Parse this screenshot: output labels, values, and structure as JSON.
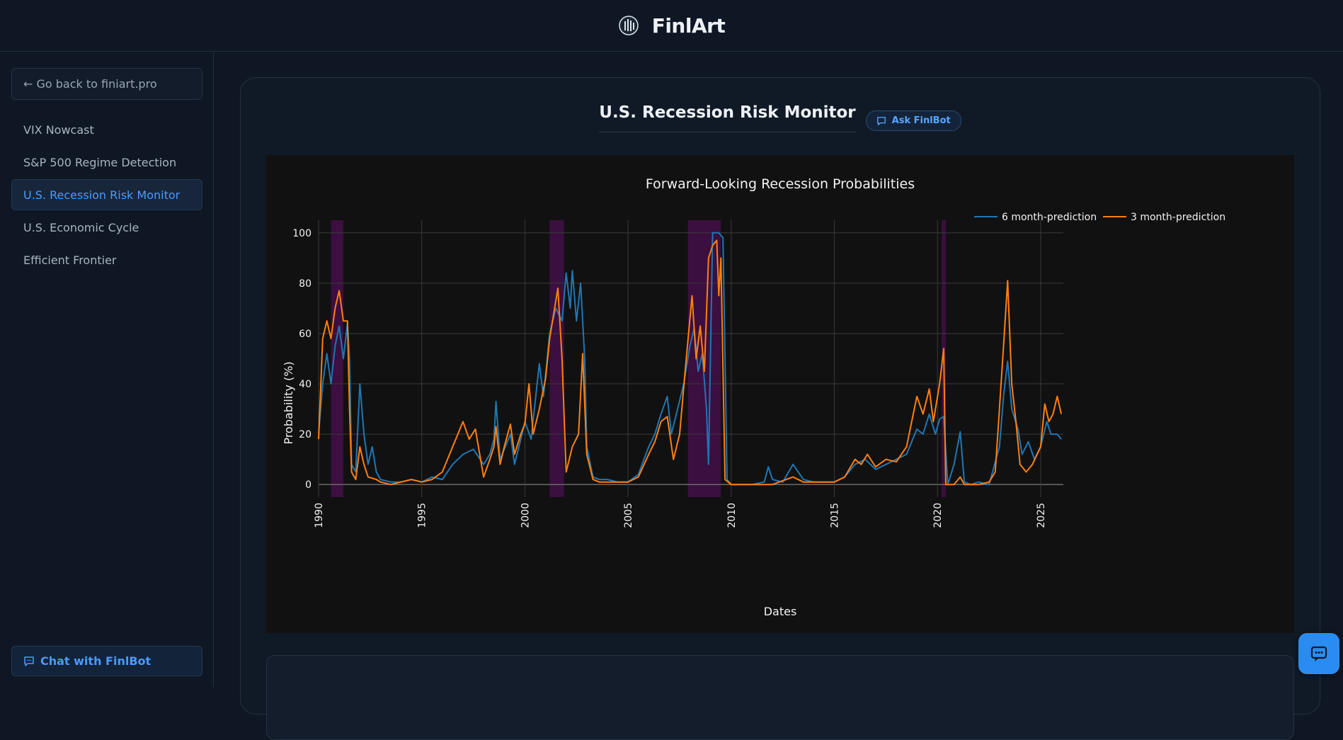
{
  "header": {
    "brand_name": "FinlArt",
    "logo_icon": "finlart-logo-icon"
  },
  "sidebar": {
    "back_label": "← Go back to finiart.pro",
    "items": [
      {
        "label": "VIX Nowcast",
        "active": false
      },
      {
        "label": "S&P 500 Regime Detection",
        "active": false
      },
      {
        "label": "U.S. Recession Risk Monitor",
        "active": true
      },
      {
        "label": "U.S. Economic Cycle",
        "active": false
      },
      {
        "label": "Efficient Frontier",
        "active": false
      }
    ],
    "chat_label": "Chat with FinlBot"
  },
  "main": {
    "title": "U.S. Recession Risk Monitor",
    "ask_label": "Ask FinlBot"
  },
  "colors": {
    "accent": "#4a9bff",
    "series_6m": "#1f77b4",
    "series_3m": "#ff7f0e",
    "recession": "#3b0f3f"
  },
  "chart_data": {
    "type": "line",
    "title": "Forward-Looking Recession Probabilities",
    "xlabel": "Dates",
    "ylabel": "Probability (%)",
    "xlim": [
      1990,
      2026.1
    ],
    "ylim": [
      -5,
      105
    ],
    "yticks": [
      0,
      20,
      40,
      60,
      80,
      100
    ],
    "xticks": [
      "1990",
      "1995",
      "2000",
      "2005",
      "2010",
      "2015",
      "2020",
      "2025"
    ],
    "grid": true,
    "legend": "top-right",
    "recession_periods": [
      [
        1990.6,
        1991.2
      ],
      [
        2001.2,
        2001.9
      ],
      [
        2007.9,
        2009.5
      ],
      [
        2020.2,
        2020.4
      ]
    ],
    "series": [
      {
        "name": "6 month-prediction",
        "color": "#1f77b4",
        "points": [
          [
            1990,
            20
          ],
          [
            1990.2,
            40
          ],
          [
            1990.4,
            52
          ],
          [
            1990.6,
            40
          ],
          [
            1990.8,
            55
          ],
          [
            1991,
            63
          ],
          [
            1991.2,
            50
          ],
          [
            1991.4,
            64
          ],
          [
            1991.5,
            50
          ],
          [
            1991.6,
            8
          ],
          [
            1991.8,
            5
          ],
          [
            1992,
            40
          ],
          [
            1992.2,
            20
          ],
          [
            1992.4,
            8
          ],
          [
            1992.6,
            15
          ],
          [
            1992.8,
            5
          ],
          [
            1993,
            2
          ],
          [
            1993.5,
            1
          ],
          [
            1994,
            1
          ],
          [
            1994.5,
            2
          ],
          [
            1995,
            1
          ],
          [
            1995.5,
            3
          ],
          [
            1996,
            2
          ],
          [
            1996.5,
            8
          ],
          [
            1997,
            12
          ],
          [
            1997.5,
            14
          ],
          [
            1998,
            8
          ],
          [
            1998.3,
            12
          ],
          [
            1998.5,
            18
          ],
          [
            1998.6,
            33
          ],
          [
            1998.8,
            10
          ],
          [
            1999,
            14
          ],
          [
            1999.3,
            20
          ],
          [
            1999.5,
            8
          ],
          [
            1999.8,
            18
          ],
          [
            2000,
            25
          ],
          [
            2000.3,
            18
          ],
          [
            2000.5,
            33
          ],
          [
            2000.7,
            48
          ],
          [
            2000.9,
            35
          ],
          [
            2001.2,
            60
          ],
          [
            2001.5,
            70
          ],
          [
            2001.8,
            65
          ],
          [
            2002,
            84
          ],
          [
            2002.2,
            70
          ],
          [
            2002.3,
            85
          ],
          [
            2002.5,
            65
          ],
          [
            2002.7,
            80
          ],
          [
            2002.9,
            50
          ],
          [
            2003,
            15
          ],
          [
            2003.3,
            3
          ],
          [
            2003.6,
            2
          ],
          [
            2004,
            2
          ],
          [
            2004.5,
            1
          ],
          [
            2005,
            1
          ],
          [
            2005.5,
            4
          ],
          [
            2006,
            15
          ],
          [
            2006.3,
            20
          ],
          [
            2006.6,
            28
          ],
          [
            2006.9,
            35
          ],
          [
            2007.1,
            20
          ],
          [
            2007.4,
            30
          ],
          [
            2007.7,
            40
          ],
          [
            2008,
            55
          ],
          [
            2008.2,
            62
          ],
          [
            2008.4,
            45
          ],
          [
            2008.6,
            52
          ],
          [
            2008.8,
            30
          ],
          [
            2008.9,
            8
          ],
          [
            2009.1,
            100
          ],
          [
            2009.4,
            100
          ],
          [
            2009.6,
            98
          ],
          [
            2009.8,
            2
          ],
          [
            2010,
            0
          ],
          [
            2011,
            0
          ],
          [
            2011.6,
            1
          ],
          [
            2011.8,
            7
          ],
          [
            2012,
            2
          ],
          [
            2012.5,
            1
          ],
          [
            2013,
            8
          ],
          [
            2013.5,
            2
          ],
          [
            2014,
            1
          ],
          [
            2015,
            1
          ],
          [
            2015.5,
            3
          ],
          [
            2016,
            8
          ],
          [
            2016.5,
            10
          ],
          [
            2017,
            6
          ],
          [
            2017.5,
            8
          ],
          [
            2018,
            10
          ],
          [
            2018.5,
            12
          ],
          [
            2019,
            22
          ],
          [
            2019.3,
            20
          ],
          [
            2019.6,
            28
          ],
          [
            2019.9,
            20
          ],
          [
            2020.1,
            26
          ],
          [
            2020.3,
            27
          ],
          [
            2020.5,
            0
          ],
          [
            2020.8,
            8
          ],
          [
            2021.1,
            21
          ],
          [
            2021.3,
            1
          ],
          [
            2021.6,
            0
          ],
          [
            2022,
            1
          ],
          [
            2022.5,
            0
          ],
          [
            2023,
            15
          ],
          [
            2023.2,
            35
          ],
          [
            2023.4,
            49
          ],
          [
            2023.6,
            30
          ],
          [
            2023.9,
            22
          ],
          [
            2024.1,
            12
          ],
          [
            2024.4,
            17
          ],
          [
            2024.7,
            10
          ],
          [
            2025,
            15
          ],
          [
            2025.3,
            25
          ],
          [
            2025.5,
            20
          ],
          [
            2025.8,
            20
          ],
          [
            2026,
            18
          ]
        ]
      },
      {
        "name": "3 month-prediction",
        "color": "#ff7f0e",
        "points": [
          [
            1990,
            18
          ],
          [
            1990.2,
            58
          ],
          [
            1990.4,
            65
          ],
          [
            1990.6,
            58
          ],
          [
            1990.8,
            70
          ],
          [
            1991,
            77
          ],
          [
            1991.2,
            65
          ],
          [
            1991.4,
            65
          ],
          [
            1991.5,
            30
          ],
          [
            1991.6,
            5
          ],
          [
            1991.8,
            2
          ],
          [
            1992,
            15
          ],
          [
            1992.2,
            8
          ],
          [
            1992.4,
            3
          ],
          [
            1992.8,
            2
          ],
          [
            1993,
            1
          ],
          [
            1993.5,
            0
          ],
          [
            1994,
            1
          ],
          [
            1994.5,
            2
          ],
          [
            1995,
            1
          ],
          [
            1995.5,
            2
          ],
          [
            1996,
            5
          ],
          [
            1996.5,
            15
          ],
          [
            1997,
            25
          ],
          [
            1997.3,
            18
          ],
          [
            1997.6,
            22
          ],
          [
            1998,
            3
          ],
          [
            1998.3,
            10
          ],
          [
            1998.5,
            15
          ],
          [
            1998.6,
            23
          ],
          [
            1998.8,
            8
          ],
          [
            1999,
            15
          ],
          [
            1999.3,
            24
          ],
          [
            1999.5,
            12
          ],
          [
            1999.8,
            20
          ],
          [
            2000,
            24
          ],
          [
            2000.2,
            40
          ],
          [
            2000.4,
            20
          ],
          [
            2000.7,
            30
          ],
          [
            2001,
            42
          ],
          [
            2001.2,
            58
          ],
          [
            2001.4,
            68
          ],
          [
            2001.6,
            78
          ],
          [
            2001.8,
            50
          ],
          [
            2002,
            5
          ],
          [
            2002.3,
            15
          ],
          [
            2002.6,
            20
          ],
          [
            2002.8,
            52
          ],
          [
            2003,
            12
          ],
          [
            2003.3,
            2
          ],
          [
            2003.6,
            1
          ],
          [
            2004,
            1
          ],
          [
            2004.5,
            1
          ],
          [
            2005,
            1
          ],
          [
            2005.5,
            3
          ],
          [
            2006,
            12
          ],
          [
            2006.3,
            17
          ],
          [
            2006.6,
            25
          ],
          [
            2006.9,
            27
          ],
          [
            2007.2,
            10
          ],
          [
            2007.5,
            20
          ],
          [
            2007.8,
            48
          ],
          [
            2008.1,
            75
          ],
          [
            2008.3,
            50
          ],
          [
            2008.5,
            63
          ],
          [
            2008.7,
            45
          ],
          [
            2008.9,
            90
          ],
          [
            2009.1,
            95
          ],
          [
            2009.3,
            97
          ],
          [
            2009.4,
            75
          ],
          [
            2009.5,
            90
          ],
          [
            2009.7,
            2
          ],
          [
            2010,
            0
          ],
          [
            2011,
            0
          ],
          [
            2012,
            0
          ],
          [
            2013,
            3
          ],
          [
            2013.5,
            1
          ],
          [
            2014,
            1
          ],
          [
            2015,
            1
          ],
          [
            2015.5,
            3
          ],
          [
            2016,
            10
          ],
          [
            2016.3,
            8
          ],
          [
            2016.6,
            12
          ],
          [
            2017,
            7
          ],
          [
            2017.5,
            10
          ],
          [
            2018,
            9
          ],
          [
            2018.5,
            15
          ],
          [
            2019,
            35
          ],
          [
            2019.3,
            28
          ],
          [
            2019.6,
            38
          ],
          [
            2019.8,
            25
          ],
          [
            2020.1,
            40
          ],
          [
            2020.3,
            54
          ],
          [
            2020.4,
            0
          ],
          [
            2020.8,
            0
          ],
          [
            2021.1,
            3
          ],
          [
            2021.3,
            0
          ],
          [
            2021.6,
            0
          ],
          [
            2022,
            0
          ],
          [
            2022.5,
            1
          ],
          [
            2022.8,
            5
          ],
          [
            2023,
            30
          ],
          [
            2023.2,
            55
          ],
          [
            2023.4,
            81
          ],
          [
            2023.6,
            40
          ],
          [
            2023.8,
            25
          ],
          [
            2024,
            8
          ],
          [
            2024.3,
            5
          ],
          [
            2024.6,
            8
          ],
          [
            2025,
            15
          ],
          [
            2025.2,
            32
          ],
          [
            2025.4,
            25
          ],
          [
            2025.6,
            28
          ],
          [
            2025.8,
            35
          ],
          [
            2026,
            28
          ]
        ]
      }
    ]
  }
}
